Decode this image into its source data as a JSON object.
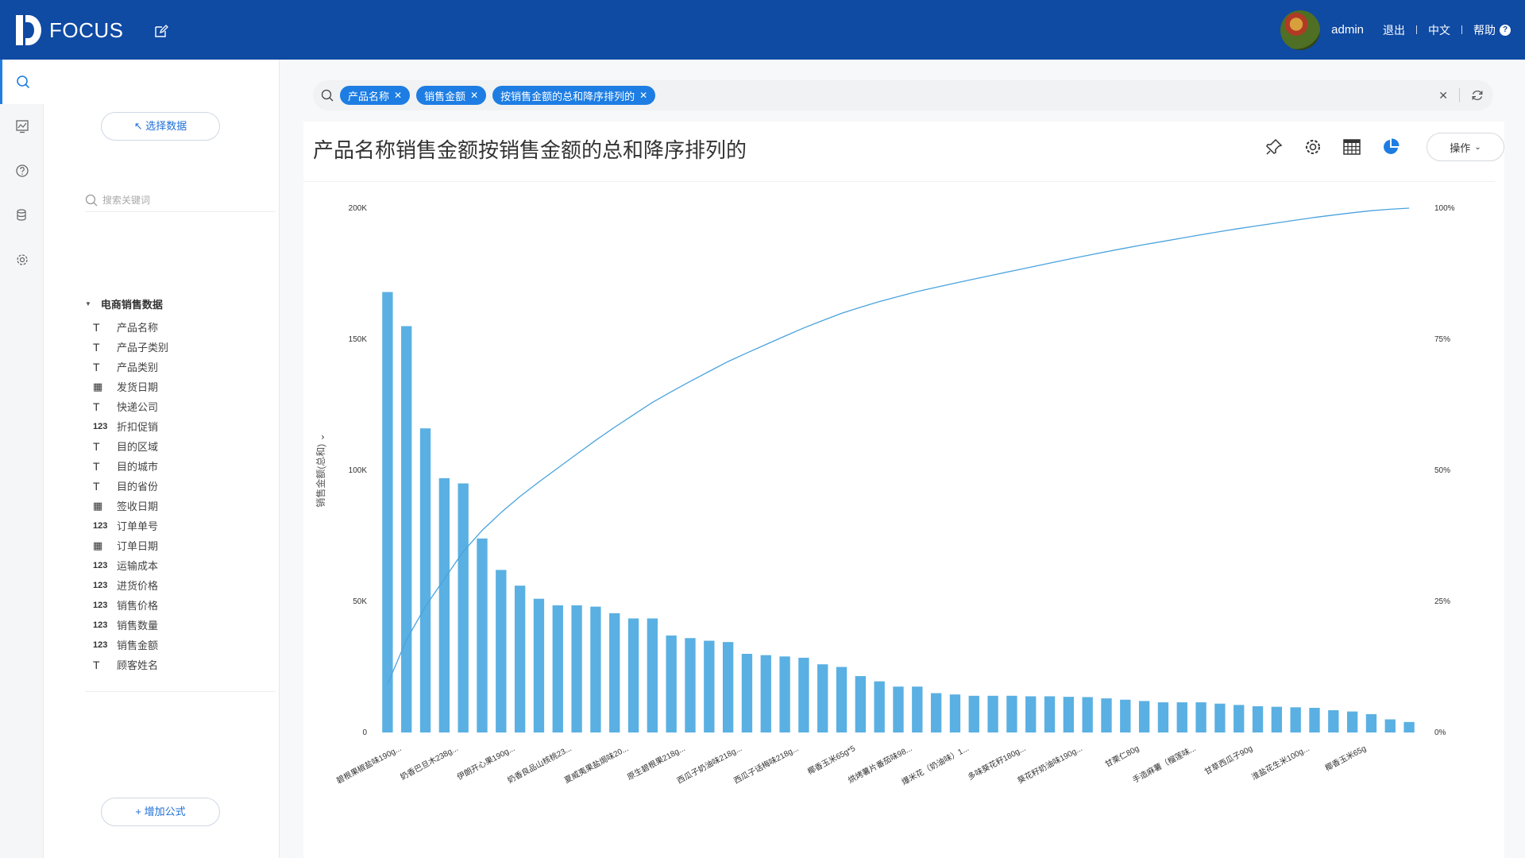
{
  "app": {
    "logo_text": "FOCUS"
  },
  "user": {
    "name": "admin",
    "logout": "退出",
    "lang": "中文",
    "help": "帮助"
  },
  "panel": {
    "select_data": "↖ 选择数据",
    "search_placeholder": "搜索关键词",
    "dataset": "电商销售数据",
    "add_formula": "+ 增加公式",
    "fields": [
      {
        "type": "T",
        "name": "产品名称"
      },
      {
        "type": "T",
        "name": "产品子类别"
      },
      {
        "type": "T",
        "name": "产品类别"
      },
      {
        "type": "date",
        "name": "发货日期"
      },
      {
        "type": "T",
        "name": "快递公司"
      },
      {
        "type": "123",
        "name": "折扣促销"
      },
      {
        "type": "T",
        "name": "目的区域"
      },
      {
        "type": "T",
        "name": "目的城市"
      },
      {
        "type": "T",
        "name": "目的省份"
      },
      {
        "type": "date",
        "name": "签收日期"
      },
      {
        "type": "123",
        "name": "订单单号"
      },
      {
        "type": "date",
        "name": "订单日期"
      },
      {
        "type": "123",
        "name": "运输成本"
      },
      {
        "type": "123",
        "name": "进货价格"
      },
      {
        "type": "123",
        "name": "销售价格"
      },
      {
        "type": "123",
        "name": "销售数量"
      },
      {
        "type": "123",
        "name": "销售金额"
      },
      {
        "type": "T",
        "name": "顾客姓名"
      }
    ]
  },
  "search": {
    "tokens": [
      "产品名称",
      "销售金额",
      "按销售金额的总和降序排列的"
    ]
  },
  "main": {
    "title": "产品名称销售金额按销售金额的总和降序排列的",
    "op_button": "操作"
  },
  "colors": {
    "topbar": "#0f4aa3",
    "bar": "#5ab0e2",
    "line": "#4aa3dd",
    "token": "#1d7de3"
  },
  "chart_data": {
    "type": "bar",
    "ylabel": "销售金额(总和)",
    "xlabel": "产品名称",
    "ylim": [
      0,
      200000
    ],
    "y2lim": [
      0,
      100
    ],
    "yticks": [
      "0",
      "50K",
      "100K",
      "150K",
      "200K"
    ],
    "y2ticks": [
      "0%",
      "25%",
      "50%",
      "75%",
      "100%"
    ],
    "x_tick_labels": [
      "碧根果椒盐味190g...",
      "奶香巴旦木238g...",
      "伊朗开心果190g...",
      "奶香良品山核桃23...",
      "夏威夷果盐焗味20...",
      "原生碧根果218g...",
      "西瓜子奶油味218g...",
      "西瓜子话梅味218g...",
      "椰香玉米65g*5",
      "烘烤薯片番茄味98...",
      "爆米花（奶油味）1...",
      "多味葵花籽180g...",
      "葵花籽奶油味190g...",
      "甘栗仁80g",
      "手造麻薯（榴莲味...",
      "甘草西瓜子90g",
      "淮盐花生米100g...",
      "椰香玉米65g"
    ],
    "values": [
      168000,
      155000,
      116000,
      97000,
      95000,
      74000,
      62000,
      56000,
      51000,
      48500,
      48500,
      48000,
      45500,
      43500,
      43500,
      37000,
      36000,
      35000,
      34500,
      30000,
      29500,
      29000,
      28500,
      26000,
      25000,
      21500,
      19500,
      17500,
      17500,
      15000,
      14500,
      14000,
      14000,
      14000,
      13800,
      13800,
      13600,
      13500,
      13000,
      12500,
      12000,
      11500,
      11500,
      11500,
      11000,
      10500,
      10000,
      9800,
      9600,
      9400,
      8500,
      8000,
      7000,
      5000,
      4000
    ],
    "cumulative_percent": true
  }
}
